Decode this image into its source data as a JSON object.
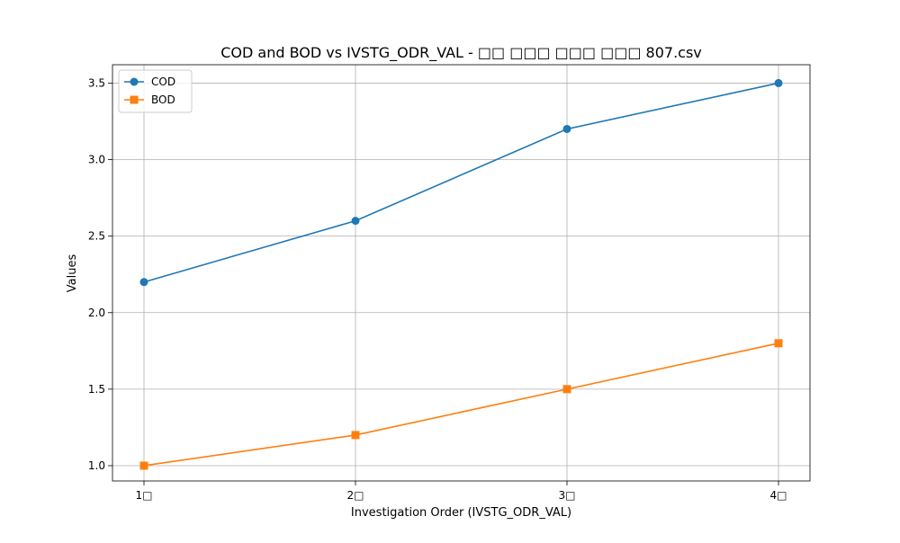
{
  "chart_data": {
    "type": "line",
    "title": "COD and BOD vs IVSTG_ODR_VAL -  □□ □□□ □□□ □□□ 807.csv",
    "xlabel": "Investigation Order (IVSTG_ODR_VAL)",
    "ylabel": "Values",
    "categories": [
      "1□",
      "2□",
      "3□",
      "4□"
    ],
    "ylim": [
      0.9,
      3.62
    ],
    "yticks": [
      "1.0",
      "1.5",
      "2.0",
      "2.5",
      "3.0",
      "3.5"
    ],
    "grid": true,
    "legend_position": "top-left",
    "series": [
      {
        "name": "COD",
        "values": [
          2.2,
          2.6,
          3.2,
          3.5
        ],
        "color": "#1f77b4",
        "marker": "circle"
      },
      {
        "name": "BOD",
        "values": [
          1.0,
          1.2,
          1.5,
          1.8
        ],
        "color": "#ff7f0e",
        "marker": "square"
      }
    ]
  }
}
